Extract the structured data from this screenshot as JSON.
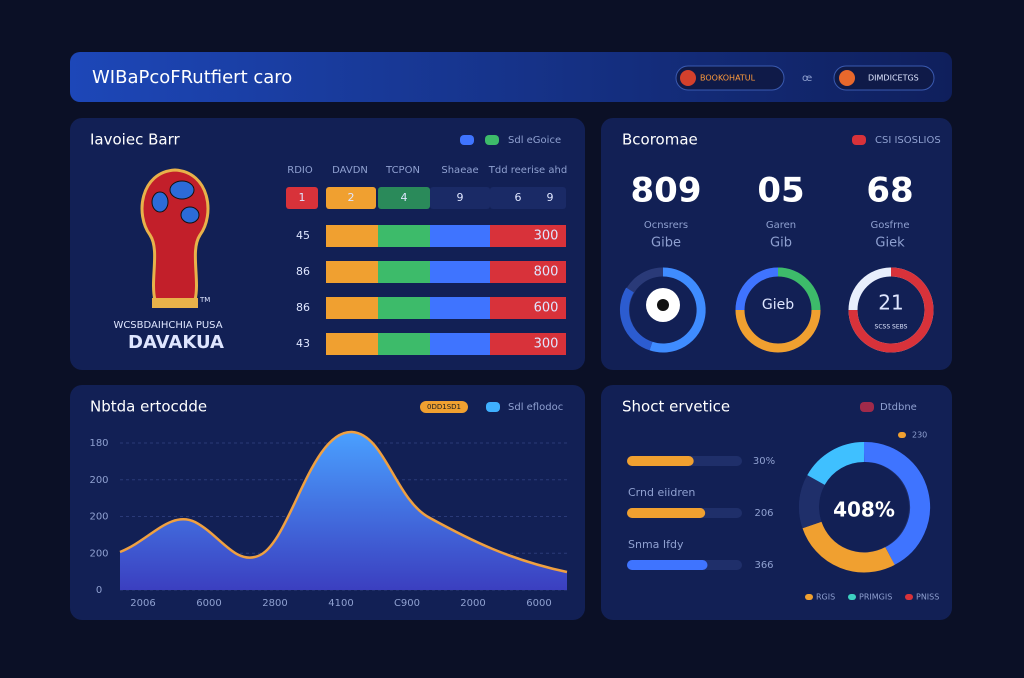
{
  "header": {
    "title": "WIBaPcoFRutfiert caro",
    "badge_left": "BOOKOHATUL",
    "separator": "œ",
    "badge_right": "DIMDICETGS"
  },
  "bar_panel": {
    "title": "Iavoiec Barr",
    "legend": "Sdl eGoice",
    "columns": [
      "RDIO",
      "DAVDN",
      "TCPON",
      "Shaeae",
      "Tdd reerise ahd"
    ],
    "first_row": [
      "1",
      "2",
      "4",
      "9",
      "6",
      "9"
    ],
    "rows": [
      {
        "label": "45",
        "value": "300"
      },
      {
        "label": "86",
        "value": "800"
      },
      {
        "label": "86",
        "value": "600"
      },
      {
        "label": "43",
        "value": "300"
      }
    ],
    "logo_line1": "WCSBDAIHCHIA PUSA",
    "logo_line2": "DAVAKUA",
    "logo_tm": "TM"
  },
  "stats_panel": {
    "title": "Bcoromae",
    "legend": "CSI ISOSLIOS",
    "stats": [
      {
        "value": "809",
        "label": "Ocnsrers",
        "sub": "Gibe"
      },
      {
        "value": "05",
        "label": "Garen",
        "sub": "Gib"
      },
      {
        "value": "68",
        "label": "Gosfrne",
        "sub": "Giek"
      }
    ],
    "donut_labels": [
      "Gieb",
      "21",
      "SCSS SEBS"
    ]
  },
  "area_panel": {
    "title": "Nbtda ertocdde",
    "legend": [
      "0DD1SD1",
      "Sdl eflodoc"
    ],
    "y_labels": [
      "180",
      "200",
      "200",
      "200",
      "0"
    ],
    "x_labels": [
      "2006",
      "6000",
      "2800",
      "4100",
      "C900",
      "2000",
      "6000"
    ]
  },
  "service_panel": {
    "title": "Shoct ervetice",
    "legend": "Dtdbne",
    "donut_legend_top": "230",
    "bars": [
      {
        "label": "",
        "value": "30%"
      },
      {
        "label": "Crnd eiidren",
        "value": "206"
      },
      {
        "label": "Snma Ifdy",
        "value": "366"
      }
    ],
    "donut_center": "408%",
    "bottom_legend": [
      "RGIS",
      "PRIMGIS",
      "PNISS"
    ]
  }
}
